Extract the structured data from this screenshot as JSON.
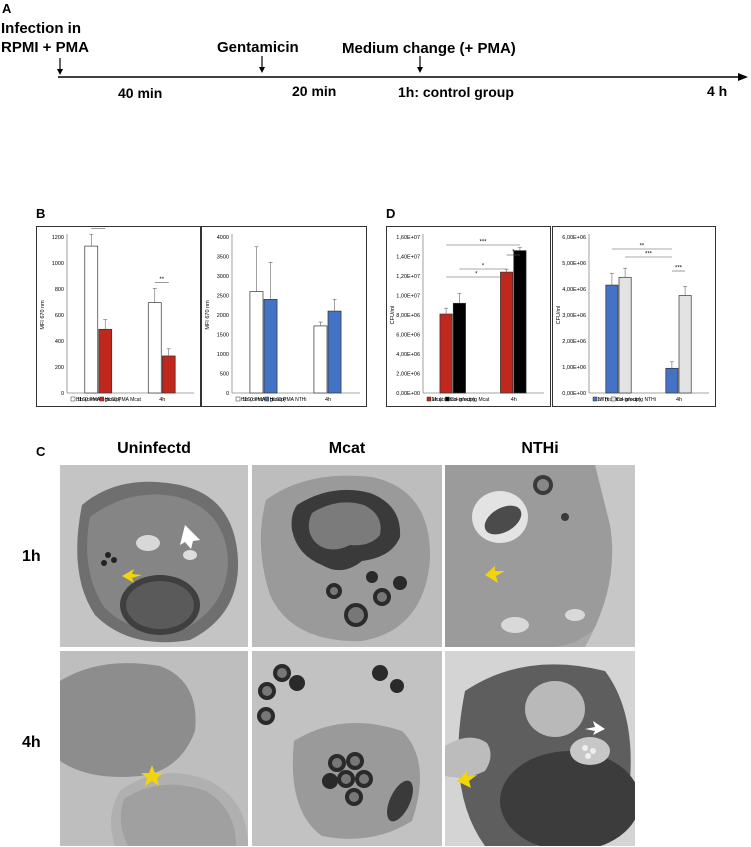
{
  "panel_a": {
    "letter": "A",
    "infection_line1": "Infection in",
    "infection_line2": "RPMI + PMA",
    "gentamicin": "Gentamicin",
    "medium_change": "Medium change (+ PMA)",
    "interval1": "40 min",
    "interval2": "20 min",
    "control": "1h: control group",
    "end": "4 h"
  },
  "panel_b": {
    "letter": "B"
  },
  "panel_c": {
    "letter": "C",
    "columns": [
      "Uninfectd",
      "Mcat",
      "NTHi"
    ],
    "rows": [
      "1h",
      "4h"
    ]
  },
  "panel_d": {
    "letter": "D"
  },
  "colors": {
    "white_bar": "#ffffff",
    "red_bar": "#c0281e",
    "blue_bar": "#4472c4",
    "black_bar": "#000000",
    "grey_bar": "#e3e3e3",
    "yellow_arrow": "#f2d40b"
  },
  "chart_data": [
    {
      "type": "bar",
      "ylabel": "MFI 670 nm",
      "ylim": [
        0,
        1200
      ],
      "yticks": [
        "0",
        "200",
        "400",
        "600",
        "800",
        "1000",
        "1200"
      ],
      "categories": [
        "1h (control group)",
        "4h"
      ],
      "series": [
        {
          "name": "HL60 PMA",
          "color": "#ffffff",
          "values": [
            1130,
            695
          ],
          "err": [
            90,
            110
          ]
        },
        {
          "name": "HL60 PMA Mcat",
          "color": "#c0281e",
          "values": [
            490,
            285
          ],
          "err": [
            75,
            55
          ]
        }
      ],
      "significance": [
        "**",
        "**"
      ]
    },
    {
      "type": "bar",
      "ylabel": "MFI 670 nm",
      "ylim": [
        0,
        4000
      ],
      "yticks": [
        "0",
        "500",
        "1000",
        "1500",
        "2000",
        "2500",
        "3000",
        "3500",
        "4000"
      ],
      "categories": [
        "1h (control group)",
        "4h"
      ],
      "series": [
        {
          "name": "HL60 PMA",
          "color": "#ffffff",
          "values": [
            2600,
            1720
          ],
          "err": [
            1150,
            100
          ]
        },
        {
          "name": "HL60 PMA NTHi",
          "color": "#4472c4",
          "values": [
            2400,
            2100
          ],
          "err": [
            950,
            300
          ]
        }
      ],
      "significance": []
    },
    {
      "type": "bar",
      "ylabel": "CFU/ml",
      "ylim": [
        0,
        16000000
      ],
      "yticks": [
        "0,00E+00",
        "2,00E+06",
        "4,00E+06",
        "6,00E+06",
        "8,00E+06",
        "1,00E+07",
        "1,20E+07",
        "1,40E+07",
        "1,60E+07"
      ],
      "categories": [
        "1h (control group)",
        "4h"
      ],
      "series": [
        {
          "name": "Mcat",
          "color": "#c0281e",
          "values": [
            8100000,
            12400000
          ],
          "err": [
            600000,
            300000
          ]
        },
        {
          "name": "Co-infecting Mcat",
          "color": "#000000",
          "values": [
            9200000,
            14600000
          ],
          "err": [
            1000000,
            300000
          ]
        }
      ],
      "significance": [
        "***",
        "*",
        "*",
        "*"
      ]
    },
    {
      "type": "bar",
      "ylabel": "CFU/ml",
      "ylim": [
        0,
        6000000
      ],
      "yticks": [
        "0,00E+00",
        "1,00E+06",
        "2,00E+06",
        "3,00E+06",
        "4,00E+06",
        "5,00E+06",
        "6,00E+06"
      ],
      "categories": [
        "1h (control group)",
        "4h"
      ],
      "series": [
        {
          "name": "NTHi",
          "color": "#4472c4",
          "values": [
            4150000,
            950000
          ],
          "err": [
            450000,
            250000
          ]
        },
        {
          "name": "Co-infecting NTHi",
          "color": "#e3e3e3",
          "values": [
            4450000,
            3750000
          ],
          "err": [
            350000,
            350000
          ]
        }
      ],
      "significance": [
        "**",
        "***",
        "***"
      ]
    }
  ]
}
